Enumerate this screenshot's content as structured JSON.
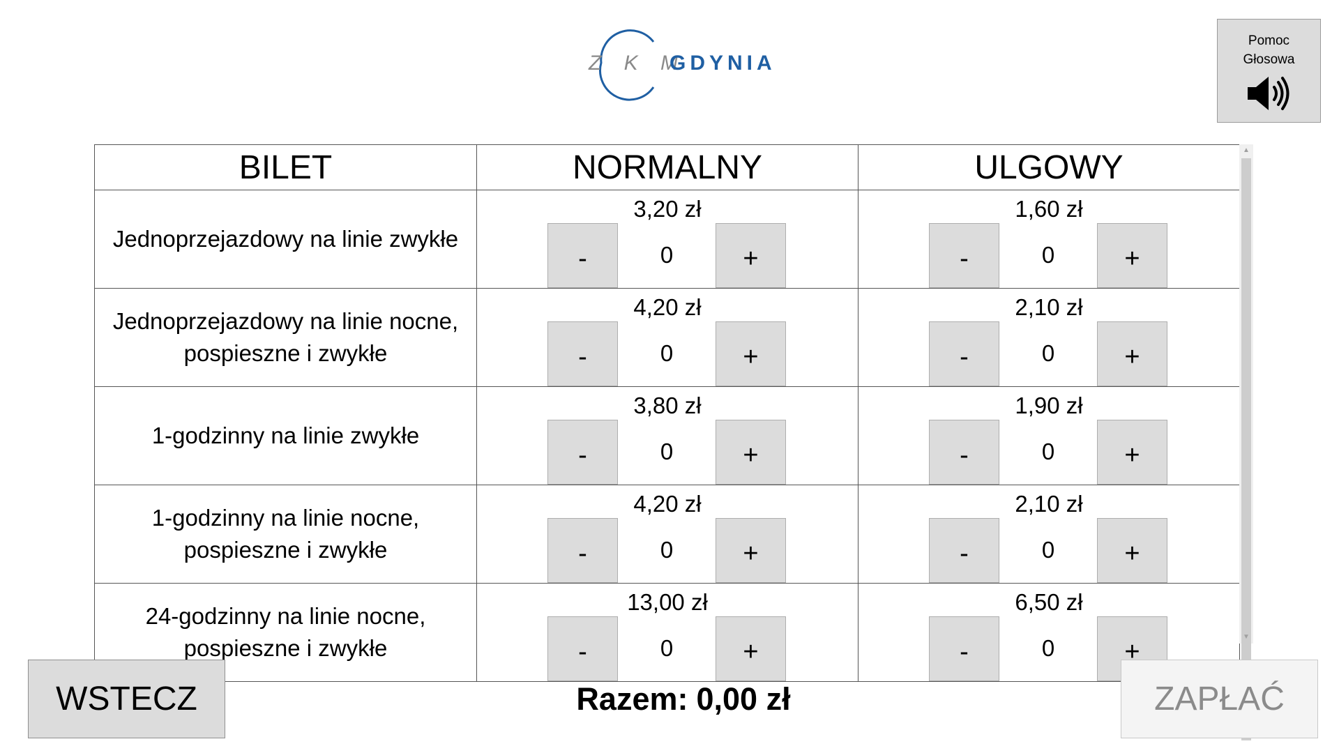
{
  "header": {
    "logo_zkm": "Z K M",
    "logo_city": "GDYNIA"
  },
  "voice_help": {
    "line1": "Pomoc",
    "line2": "Głosowa",
    "icon": "speaker-icon"
  },
  "table": {
    "headers": [
      "BILET",
      "NORMALNY",
      "ULGOWY"
    ],
    "rows": [
      {
        "name_lines": [
          "Jednoprzejazdowy na linie zwykłe"
        ],
        "normal": {
          "price": "3,20 zł",
          "qty": "0"
        },
        "reduced": {
          "price": "1,60 zł",
          "qty": "0"
        }
      },
      {
        "name_lines": [
          "Jednoprzejazdowy na linie nocne,",
          "pospieszne i zwykłe"
        ],
        "normal": {
          "price": "4,20 zł",
          "qty": "0"
        },
        "reduced": {
          "price": "2,10 zł",
          "qty": "0"
        }
      },
      {
        "name_lines": [
          "1-godzinny na linie zwykłe"
        ],
        "normal": {
          "price": "3,80 zł",
          "qty": "0"
        },
        "reduced": {
          "price": "1,90 zł",
          "qty": "0"
        }
      },
      {
        "name_lines": [
          "1-godzinny na linie nocne,",
          "pospieszne i zwykłe"
        ],
        "normal": {
          "price": "4,20 zł",
          "qty": "0"
        },
        "reduced": {
          "price": "2,10 zł",
          "qty": "0"
        }
      },
      {
        "name_lines": [
          "24-godzinny na linie nocne,",
          "pospieszne i zwykłe"
        ],
        "normal": {
          "price": "13,00 zł",
          "qty": "0"
        },
        "reduced": {
          "price": "6,50 zł",
          "qty": "0"
        }
      }
    ],
    "minus_label": "-",
    "plus_label": "+"
  },
  "footer": {
    "back_label": "WSTECZ",
    "total_label": "Razem:",
    "total_value": "0,00 zł",
    "pay_label": "ZAPŁAĆ"
  },
  "colors": {
    "brand_blue": "#1f5fa3",
    "logo_grey": "#8a8a8a",
    "button_grey": "#dcdcdc",
    "disabled_text": "#8b8b8b"
  }
}
